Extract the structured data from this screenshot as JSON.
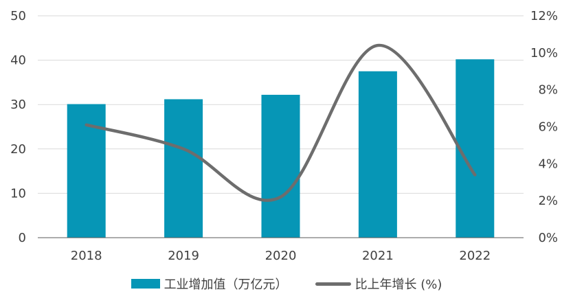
{
  "chart_data": {
    "type": "bar+line",
    "categories": [
      "2018",
      "2019",
      "2020",
      "2021",
      "2022"
    ],
    "series": [
      {
        "name": "工业增加值（万亿元）",
        "type": "bar",
        "axis": "left",
        "values": [
          30.1,
          31.2,
          32.2,
          37.5,
          40.2
        ],
        "color": "#0696b6"
      },
      {
        "name": "比上年增长 (%)",
        "type": "line",
        "axis": "right",
        "values": [
          6.1,
          4.8,
          2.2,
          10.4,
          3.4
        ],
        "color": "#6d6d6d"
      }
    ],
    "y_left": {
      "range": [
        0,
        50
      ],
      "ticks": [
        "0",
        "10",
        "20",
        "30",
        "40",
        "50"
      ]
    },
    "y_right": {
      "range": [
        0,
        12
      ],
      "ticks": [
        "0%",
        "2%",
        "4%",
        "6%",
        "8%",
        "10%",
        "12%"
      ]
    },
    "grid": true,
    "legend": "bottom"
  }
}
